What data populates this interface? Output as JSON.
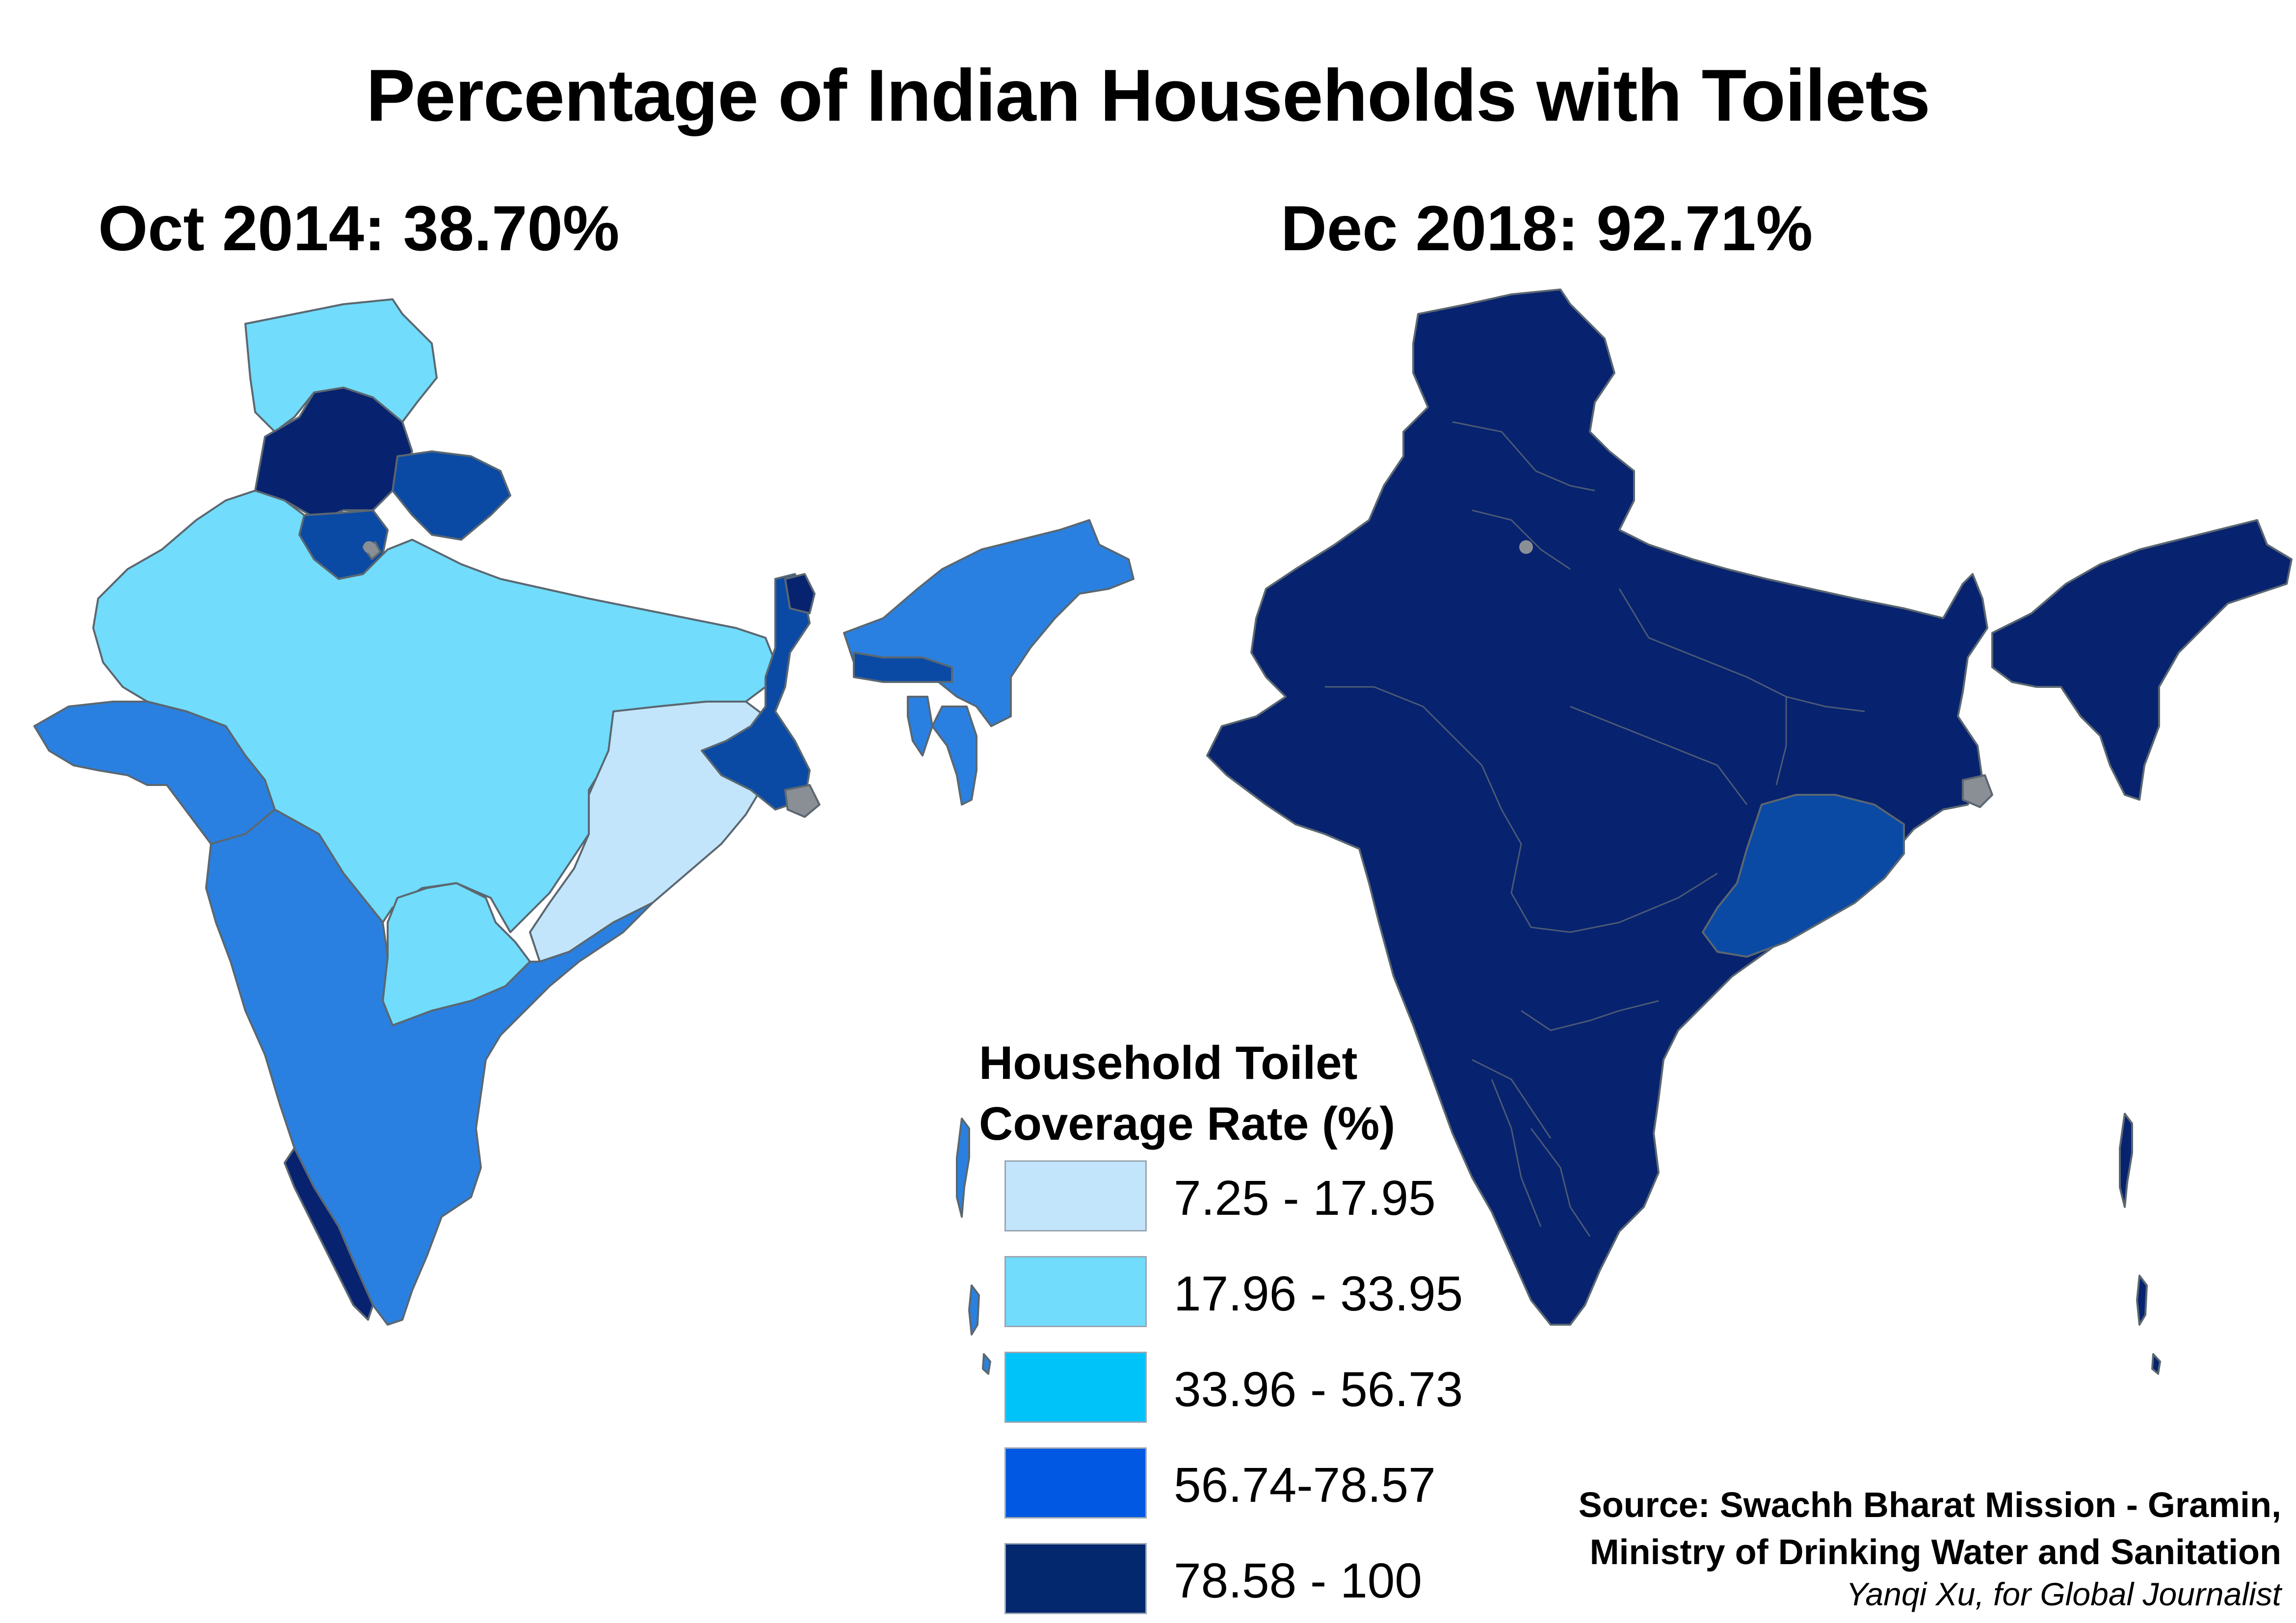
{
  "title": "Percentage of Indian Households with Toilets",
  "panels": [
    {
      "label": "Oct 2014: 38.70%"
    },
    {
      "label": "Dec 2018: 92.71%"
    }
  ],
  "legend": {
    "title_line1": "Household Toilet",
    "title_line2": "Coverage Rate (%)",
    "classes": [
      {
        "label": "7.25 - 17.95",
        "color": "#c2e5fb"
      },
      {
        "label": "17.96 - 33.95",
        "color": "#71dcfb"
      },
      {
        "label": "33.96 - 56.73",
        "color": "#00c3fa"
      },
      {
        "label": "56.74-78.57",
        "color": "#0058e3"
      },
      {
        "label": "78.58 - 100",
        "color": "#03286e"
      }
    ]
  },
  "map_colors": {
    "class1": "#c2e5fb",
    "class2": "#71dcfb",
    "class4_map": "#2a80e0",
    "class5_map_mid": "#0a4aa4",
    "class5_map_dark": "#07226f",
    "no_data": "#8a8f96",
    "boundary": "#5b6770"
  },
  "source": {
    "line1": "Source: Swachh Bharat Mission - Gramin,",
    "line2": "Ministry of Drinking Water and Sanitation",
    "credit": "Yanqi Xu, for Global Journalist"
  }
}
